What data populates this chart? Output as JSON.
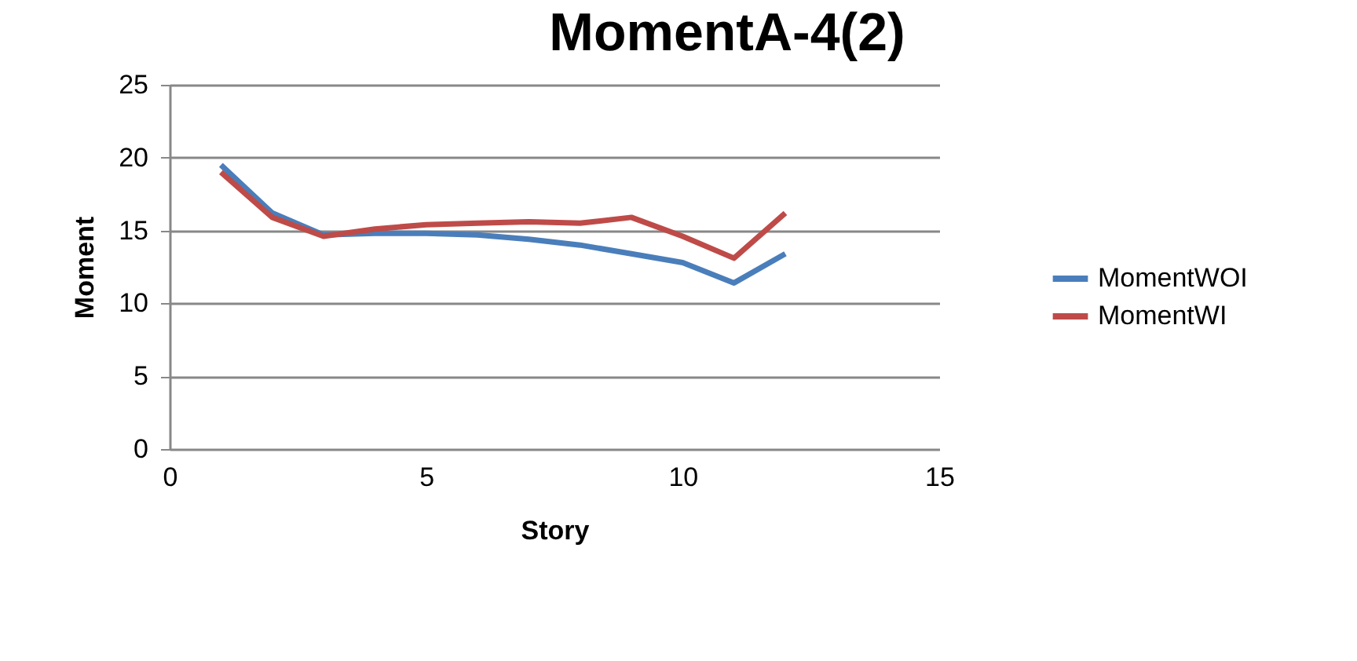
{
  "chart_data": {
    "type": "line",
    "title": "MomentA-4(2)",
    "xlabel": "Story",
    "ylabel": "Moment",
    "x": [
      1,
      2,
      3,
      4,
      5,
      6,
      7,
      8,
      9,
      10,
      11,
      12
    ],
    "series": [
      {
        "name": "MomentWOI",
        "color": "#4a7ebb",
        "values": [
          19.5,
          16.2,
          14.7,
          14.8,
          14.8,
          14.7,
          14.4,
          14.0,
          13.4,
          12.8,
          11.4,
          13.4
        ]
      },
      {
        "name": "MomentWI",
        "color": "#be4b48",
        "values": [
          19.0,
          15.9,
          14.6,
          15.1,
          15.4,
          15.5,
          15.6,
          15.5,
          15.9,
          14.6,
          13.1,
          16.2
        ]
      }
    ],
    "xlim": [
      0,
      15
    ],
    "xticks": [
      0,
      5,
      10,
      15
    ],
    "ylim": [
      0,
      25
    ],
    "yticks": [
      0,
      5,
      10,
      15,
      20,
      25
    ],
    "grid": "y",
    "legend": "right",
    "marker": "none",
    "line_style": "solid"
  }
}
